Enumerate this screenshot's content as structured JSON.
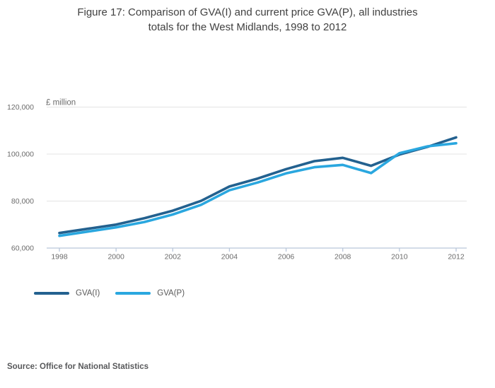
{
  "header": {
    "title_lines": [
      "Figure 17: Comparison of GVA(I) and current price GVA(P), all industries",
      "totals for the West Midlands, 1998 to 2012"
    ]
  },
  "chart_data": {
    "type": "line",
    "title": "Figure 17: Comparison of GVA(I) and current price GVA(P), all industries totals for the West Midlands, 1998 to 2012",
    "unit_label": "£ million",
    "xlabel": "",
    "ylabel": "£ million",
    "x": [
      1998,
      1999,
      2000,
      2001,
      2002,
      2003,
      2004,
      2005,
      2006,
      2007,
      2008,
      2009,
      2010,
      2011,
      2012
    ],
    "series": [
      {
        "name": "GVA(I)",
        "color": "#23618F",
        "values": [
          66400,
          68200,
          70000,
          72700,
          75900,
          80100,
          86200,
          89600,
          93600,
          97000,
          98400,
          95000,
          99800,
          103100,
          107100
        ]
      },
      {
        "name": "GVA(P)",
        "color": "#2AA7DF",
        "values": [
          65200,
          67000,
          68800,
          71100,
          74300,
          78400,
          84600,
          87900,
          91800,
          94400,
          95400,
          91900,
          100400,
          103300,
          104600
        ]
      }
    ],
    "xticks": [
      1998,
      2000,
      2002,
      2004,
      2006,
      2008,
      2010,
      2012
    ],
    "yticks": [
      {
        "value": 60000,
        "label": "60,000"
      },
      {
        "value": 80000,
        "label": "80,000"
      },
      {
        "value": 100000,
        "label": "100,000"
      },
      {
        "value": 120000,
        "label": "120,000"
      }
    ],
    "ylim": [
      60000,
      120000
    ],
    "xlim": [
      1998,
      2012
    ],
    "grid": "horizontal",
    "legend_position": "bottom-left"
  },
  "legend": {
    "items": [
      {
        "label": "GVA(I)",
        "color": "#23618F"
      },
      {
        "label": "GVA(P)",
        "color": "#2AA7DF"
      }
    ]
  },
  "footer": {
    "source": "Source: Office for National Statistics"
  },
  "colors": {
    "title_text": "#414141",
    "tick_text": "#6b6b6b",
    "gridline": "#e4e4e4",
    "axis_line": "#b9c7d9",
    "legend_text": "#595959",
    "source_text": "#58595b"
  }
}
